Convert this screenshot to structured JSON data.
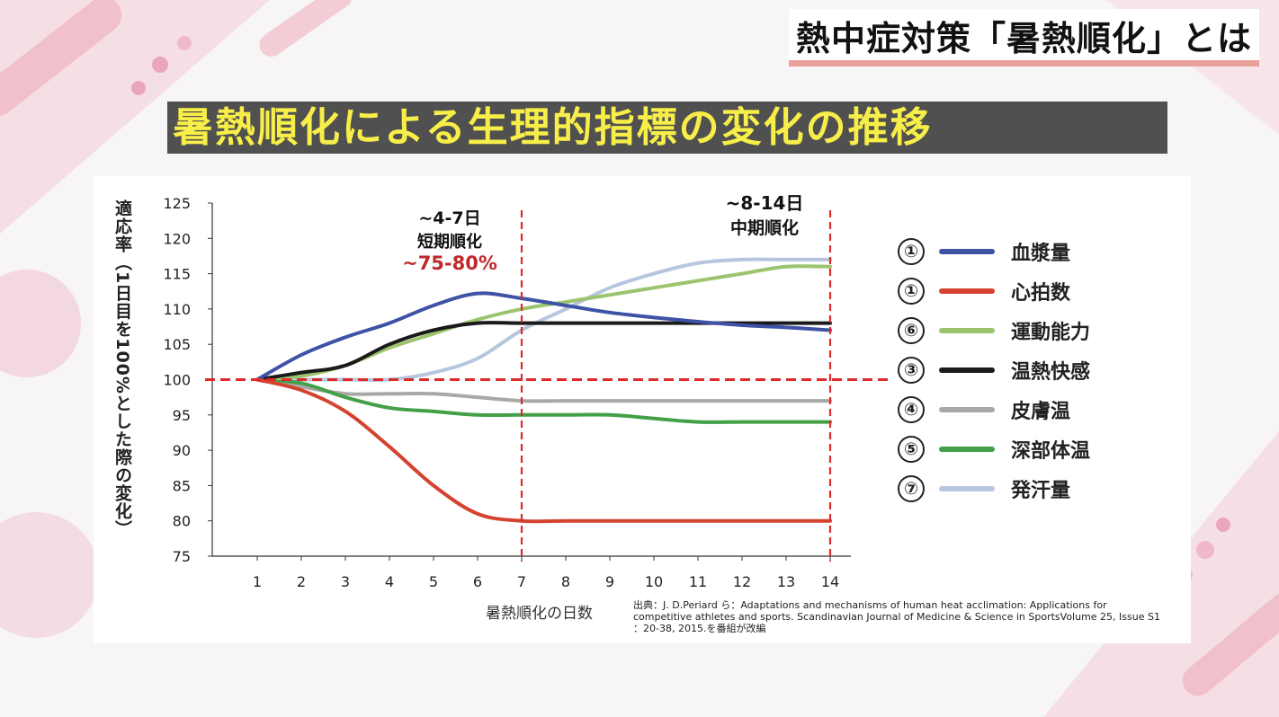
{
  "header": {
    "corner_title": "熱中症対策「暑熱順化」とは",
    "main_title": "暑熱順化による生理的指標の変化の推移"
  },
  "colors": {
    "title_band": "#505050",
    "title_text": "#f7ee49",
    "reference_line": "#dd2b2b",
    "short_term_percent": "#c0282a"
  },
  "annotations": {
    "short_term": {
      "range": "~4-7日",
      "label": "短期順化",
      "percent": "~75-80%"
    },
    "mid_term": {
      "range": "~8-14日",
      "label": "中期順化"
    }
  },
  "legend": [
    {
      "num": "①",
      "label": "血漿量",
      "color": "#3e52a6",
      "icon": "line-swatch"
    },
    {
      "num": "①",
      "label": "心拍数",
      "color": "#d54330",
      "icon": "line-swatch"
    },
    {
      "num": "⑥",
      "label": "運動能力",
      "color": "#9cc46e",
      "icon": "line-swatch"
    },
    {
      "num": "③",
      "label": "温熱快感",
      "color": "#1a1a1a",
      "icon": "line-swatch"
    },
    {
      "num": "④",
      "label": "皮膚温",
      "color": "#a8a8a8",
      "icon": "line-swatch"
    },
    {
      "num": "⑤",
      "label": "深部体温",
      "color": "#44a048",
      "icon": "line-swatch"
    },
    {
      "num": "⑦",
      "label": "発汗量",
      "color": "#b6c6df",
      "icon": "line-swatch"
    }
  ],
  "source": {
    "text": "出典：J. D.Periard ら：Adaptations and mechanisms of human heat acclimation: Applications for competitive athletes and sports.  Scandinavian Journal of Medicine & Science in SportsVolume 25, Issue S1 ：20-38, 2015.を番組が改編"
  },
  "chart_data": {
    "type": "line",
    "title": "暑熱順化による生理的指標の変化の推移",
    "xlabel": "暑熱順化の日数",
    "ylabel": "適応率（1日目を100%とした際の変化）",
    "x": [
      1,
      2,
      3,
      4,
      5,
      6,
      7,
      8,
      9,
      10,
      11,
      12,
      13,
      14
    ],
    "ylim": [
      75,
      125
    ],
    "yticks": [
      75,
      80,
      85,
      90,
      95,
      100,
      105,
      110,
      115,
      120,
      125
    ],
    "reference_lines": {
      "horizontal": 100,
      "vertical": [
        7,
        14
      ]
    },
    "series": [
      {
        "name": "血漿量",
        "color": "#3e52a6",
        "values": [
          100,
          103.5,
          106,
          108,
          110.5,
          112.2,
          111.5,
          110.5,
          109.5,
          108.8,
          108.2,
          107.7,
          107.4,
          107
        ]
      },
      {
        "name": "心拍数",
        "color": "#d54330",
        "values": [
          100,
          98.5,
          95.5,
          90.5,
          85,
          81,
          80,
          80,
          80,
          80,
          80,
          80,
          80,
          80
        ]
      },
      {
        "name": "運動能力",
        "color": "#9cc46e",
        "values": [
          100,
          100.5,
          102,
          104.5,
          106.5,
          108.5,
          110,
          111,
          112,
          113,
          114,
          115,
          116,
          116
        ]
      },
      {
        "name": "温熱快感",
        "color": "#1a1a1a",
        "values": [
          100,
          101,
          102,
          105,
          107,
          108,
          108,
          108,
          108,
          108,
          108,
          108,
          108,
          108
        ]
      },
      {
        "name": "皮膚温",
        "color": "#a8a8a8",
        "values": [
          100,
          99,
          98,
          98,
          98,
          97.5,
          97,
          97,
          97,
          97,
          97,
          97,
          97,
          97
        ]
      },
      {
        "name": "深部体温",
        "color": "#44a048",
        "values": [
          100,
          99.5,
          97.5,
          96,
          95.5,
          95,
          95,
          95,
          95,
          94.5,
          94,
          94,
          94,
          94
        ]
      },
      {
        "name": "発汗量",
        "color": "#b6c6df",
        "values": [
          100,
          100,
          100,
          100,
          101,
          103,
          107,
          110,
          113,
          115,
          116.5,
          117,
          117,
          117
        ]
      }
    ]
  }
}
